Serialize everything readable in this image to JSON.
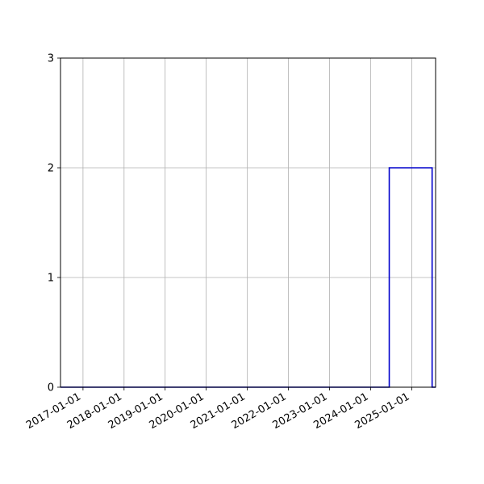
{
  "chart_data": {
    "type": "line",
    "step": true,
    "title": "",
    "xlabel": "",
    "ylabel": "",
    "xlim": [
      "2016-06-15",
      "2025-08-01"
    ],
    "ylim": [
      0,
      3
    ],
    "grid": true,
    "x_tick_labels": [
      "2017-01-01",
      "2018-01-01",
      "2019-01-01",
      "2020-01-01",
      "2021-01-01",
      "2022-01-01",
      "2023-01-01",
      "2024-01-01",
      "2025-01-01"
    ],
    "y_tick_labels": [
      "0",
      "1",
      "2",
      "3"
    ],
    "series": [
      {
        "color": "#0000cc",
        "x": [
          "2016-06-15",
          "2024-06-15",
          "2024-06-15",
          "2025-07-01",
          "2025-07-01",
          "2025-08-01"
        ],
        "y": [
          0,
          0,
          2,
          2,
          0,
          0
        ]
      }
    ]
  }
}
